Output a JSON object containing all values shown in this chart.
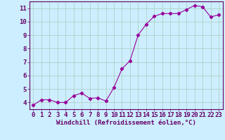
{
  "x": [
    0,
    1,
    2,
    3,
    4,
    5,
    6,
    7,
    8,
    9,
    10,
    11,
    12,
    13,
    14,
    15,
    16,
    17,
    18,
    19,
    20,
    21,
    22,
    23
  ],
  "y": [
    3.8,
    4.2,
    4.2,
    4.0,
    4.0,
    4.5,
    4.7,
    4.3,
    4.35,
    4.1,
    5.1,
    6.5,
    7.1,
    9.0,
    9.8,
    10.4,
    10.6,
    10.6,
    10.6,
    10.9,
    11.2,
    11.1,
    10.35,
    10.5
  ],
  "line_color": "#990099",
  "marker": "D",
  "marker_size": 2.2,
  "bg_color": "#cceeff",
  "grid_color": "#aaccbb",
  "axis_color": "#660066",
  "xlabel": "Windchill (Refroidissement éolien,°C)",
  "xlabel_fontsize": 6.5,
  "tick_fontsize": 6.5,
  "xlim": [
    -0.5,
    23.5
  ],
  "ylim": [
    3.5,
    11.5
  ],
  "yticks": [
    4,
    5,
    6,
    7,
    8,
    9,
    10,
    11
  ],
  "xticks": [
    0,
    1,
    2,
    3,
    4,
    5,
    6,
    7,
    8,
    9,
    10,
    11,
    12,
    13,
    14,
    15,
    16,
    17,
    18,
    19,
    20,
    21,
    22,
    23
  ]
}
